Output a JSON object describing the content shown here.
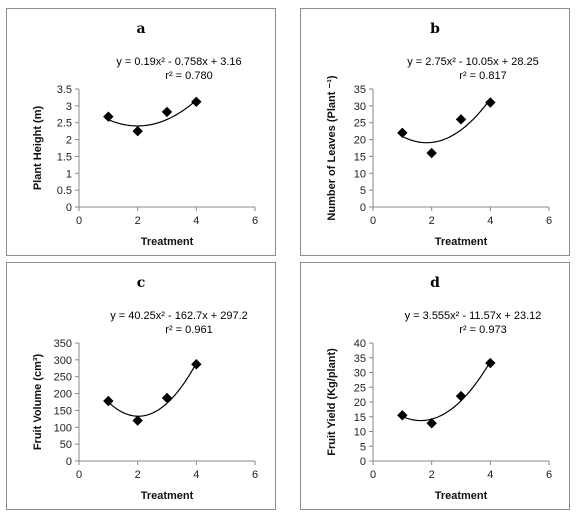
{
  "chart_data": [
    {
      "type": "scatter",
      "panel_label": "a",
      "equation": "y = 0.19x² - 0.758x + 3.16",
      "r2": "r² = 0.780",
      "xlabel": "Treatment",
      "ylabel": "Plant Height (m)",
      "xlim": [
        0,
        6
      ],
      "xticks": [
        0,
        2,
        4,
        6
      ],
      "ylim": [
        0,
        3.5
      ],
      "yticks": [
        0,
        0.5,
        1,
        1.5,
        2,
        2.5,
        3,
        3.5
      ],
      "x": [
        1,
        2,
        3,
        4
      ],
      "y": [
        2.68,
        2.25,
        2.82,
        3.12
      ],
      "fit": {
        "a": 0.19,
        "b": -0.758,
        "c": 3.16
      },
      "color": "#000000",
      "grid": false
    },
    {
      "type": "scatter",
      "panel_label": "b",
      "equation": "y = 2.75x² - 10.05x + 28.25",
      "r2": "r² = 0.817",
      "xlabel": "Treatment",
      "ylabel": "Number of Leaves (Plant ⁻¹)",
      "xlim": [
        0,
        6
      ],
      "xticks": [
        0,
        2,
        4,
        6
      ],
      "ylim": [
        0,
        35
      ],
      "yticks": [
        0,
        5,
        10,
        15,
        20,
        25,
        30,
        35
      ],
      "x": [
        1,
        2,
        3,
        4
      ],
      "y": [
        22,
        16,
        26,
        31
      ],
      "fit": {
        "a": 2.75,
        "b": -10.05,
        "c": 28.25
      },
      "color": "#000000",
      "grid": false
    },
    {
      "type": "scatter",
      "panel_label": "c",
      "equation": "y = 40.25x² - 162.7x + 297.2",
      "r2": "r² = 0.961",
      "xlabel": "Treatment",
      "ylabel": "Fruit Volume (cm³)",
      "xlim": [
        0,
        6
      ],
      "xticks": [
        0,
        2,
        4,
        6
      ],
      "ylim": [
        0,
        350
      ],
      "yticks": [
        0,
        50,
        100,
        150,
        200,
        250,
        300,
        350
      ],
      "x": [
        1,
        2,
        3,
        4
      ],
      "y": [
        178,
        120,
        187,
        287
      ],
      "fit": {
        "a": 40.25,
        "b": -162.7,
        "c": 297.2
      },
      "color": "#000000",
      "grid": false
    },
    {
      "type": "scatter",
      "panel_label": "d",
      "equation": "y = 3.555x² - 11.57x + 23.12",
      "r2": "r² = 0.973",
      "xlabel": "Treatment",
      "ylabel": "Fruit Yield (Kg/plant)",
      "xlim": [
        0,
        6
      ],
      "xticks": [
        0,
        2,
        4,
        6
      ],
      "ylim": [
        0,
        40
      ],
      "yticks": [
        0,
        5,
        10,
        15,
        20,
        25,
        30,
        35,
        40
      ],
      "x": [
        1,
        2,
        3,
        4
      ],
      "y": [
        15.5,
        12.8,
        22,
        33.2
      ],
      "fit": {
        "a": 3.555,
        "b": -11.57,
        "c": 23.12
      },
      "color": "#000000",
      "grid": false
    }
  ]
}
